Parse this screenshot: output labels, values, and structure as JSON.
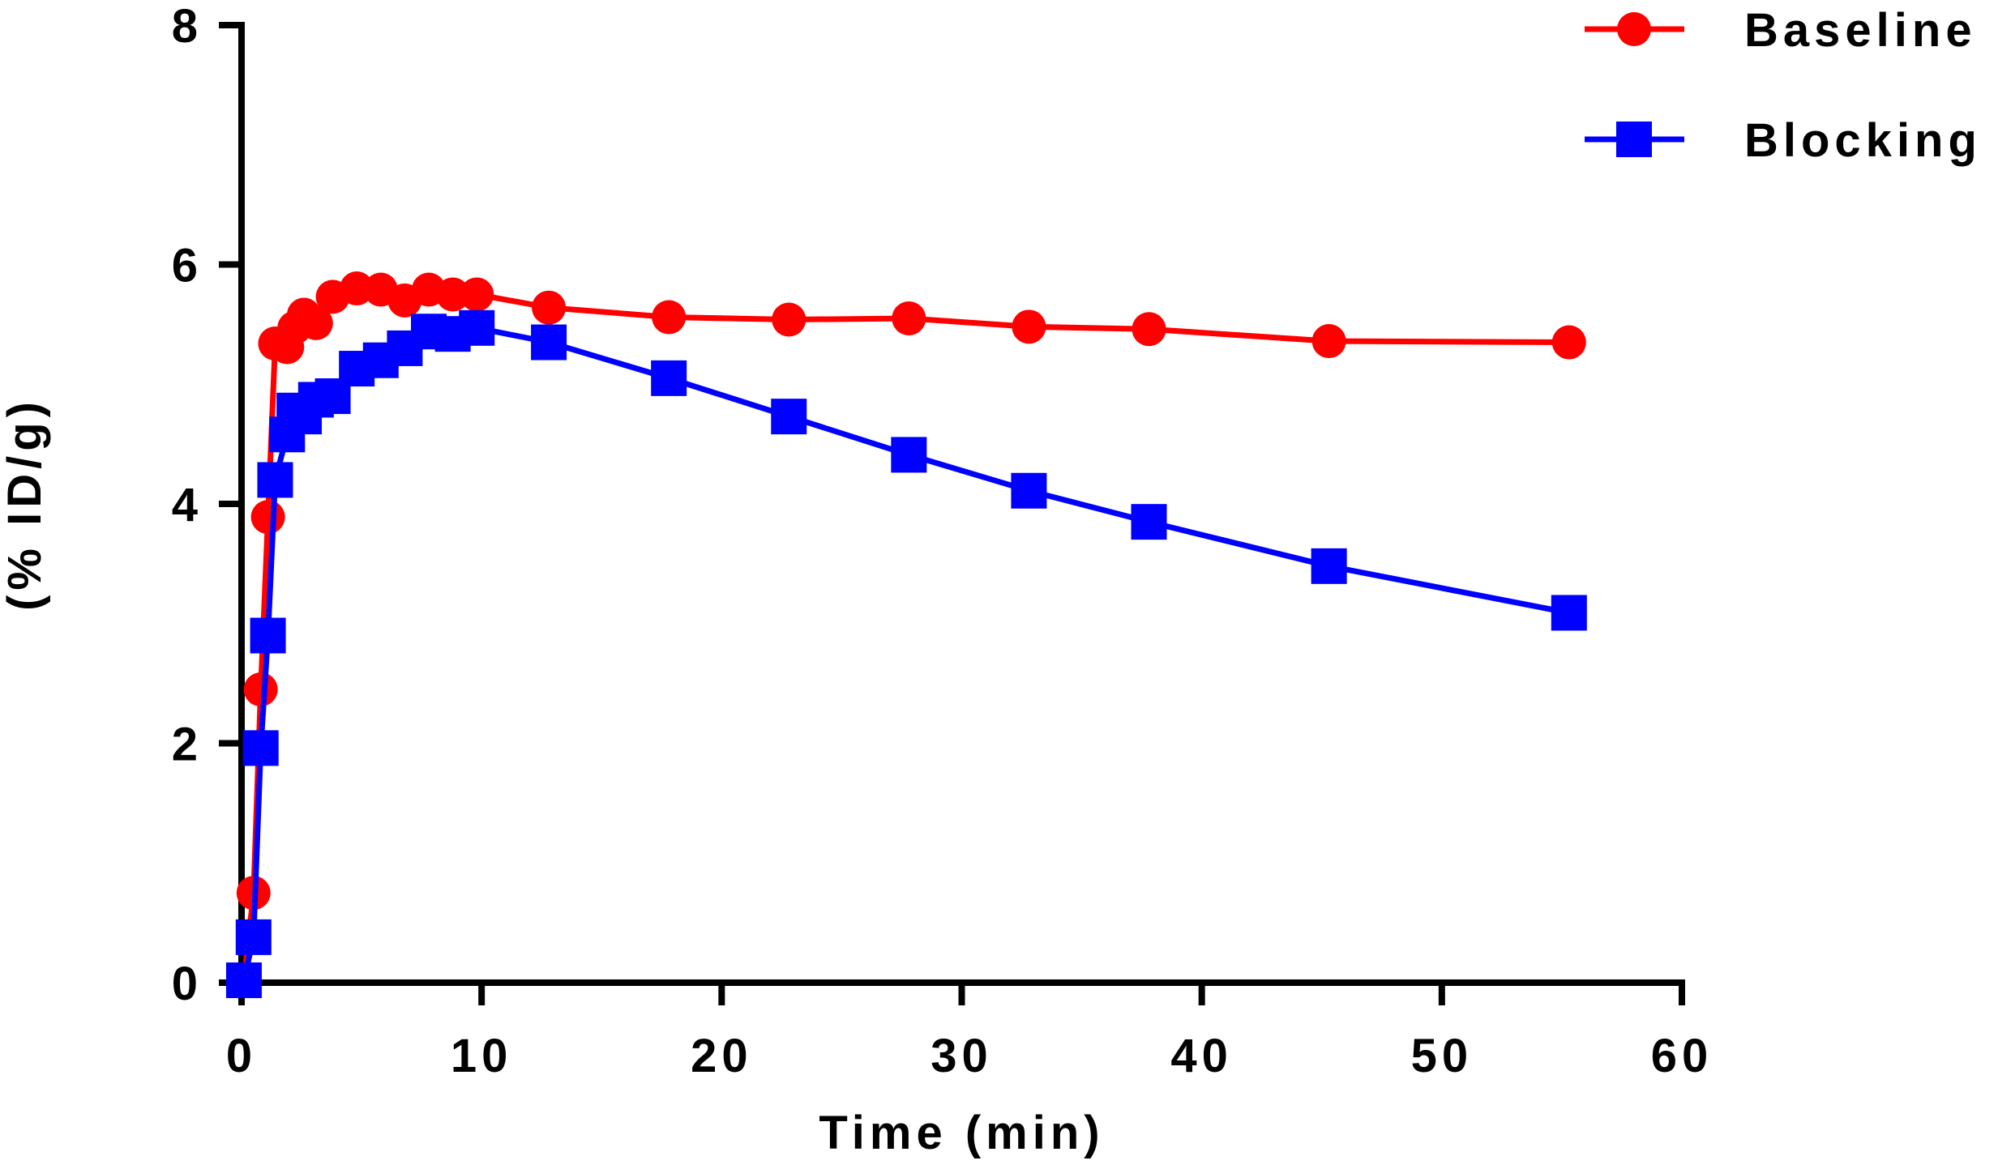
{
  "chart_data": {
    "type": "line",
    "title": "",
    "xlabel": "Time (min)",
    "ylabel": "(% ID/g)",
    "xlim": [
      0,
      60
    ],
    "ylim": [
      0,
      8
    ],
    "xticks": [
      0,
      10,
      20,
      30,
      40,
      50,
      60
    ],
    "yticks": [
      0,
      2,
      4,
      6,
      8
    ],
    "grid": false,
    "legend_position": "top-right",
    "series": [
      {
        "name": "Baseline",
        "color": "#ff0000",
        "marker": "circle",
        "x": [
          0.1,
          0.5,
          0.8,
          1.1,
          1.4,
          1.9,
          2.2,
          2.6,
          3.1,
          3.8,
          4.8,
          5.8,
          6.8,
          7.8,
          8.8,
          9.8,
          12.8,
          17.8,
          22.8,
          27.8,
          32.8,
          37.8,
          45.3,
          55.3
        ],
        "y": [
          0.02,
          0.75,
          2.45,
          3.89,
          5.34,
          5.31,
          5.47,
          5.58,
          5.51,
          5.73,
          5.8,
          5.79,
          5.7,
          5.79,
          5.75,
          5.75,
          5.64,
          5.56,
          5.54,
          5.55,
          5.48,
          5.46,
          5.36,
          5.35
        ]
      },
      {
        "name": "Blocking",
        "color": "#0000ff",
        "marker": "square",
        "x": [
          0.1,
          0.5,
          0.8,
          1.1,
          1.4,
          1.9,
          2.2,
          2.6,
          3.1,
          3.8,
          4.8,
          5.8,
          6.8,
          7.8,
          8.8,
          9.8,
          12.8,
          17.8,
          22.8,
          27.8,
          32.8,
          37.8,
          45.3,
          55.3
        ],
        "y": [
          0.02,
          0.38,
          1.96,
          2.9,
          4.2,
          4.58,
          4.78,
          4.73,
          4.87,
          4.9,
          5.13,
          5.2,
          5.3,
          5.44,
          5.42,
          5.47,
          5.35,
          5.05,
          4.73,
          4.41,
          4.11,
          3.85,
          3.48,
          3.09
        ]
      }
    ]
  }
}
